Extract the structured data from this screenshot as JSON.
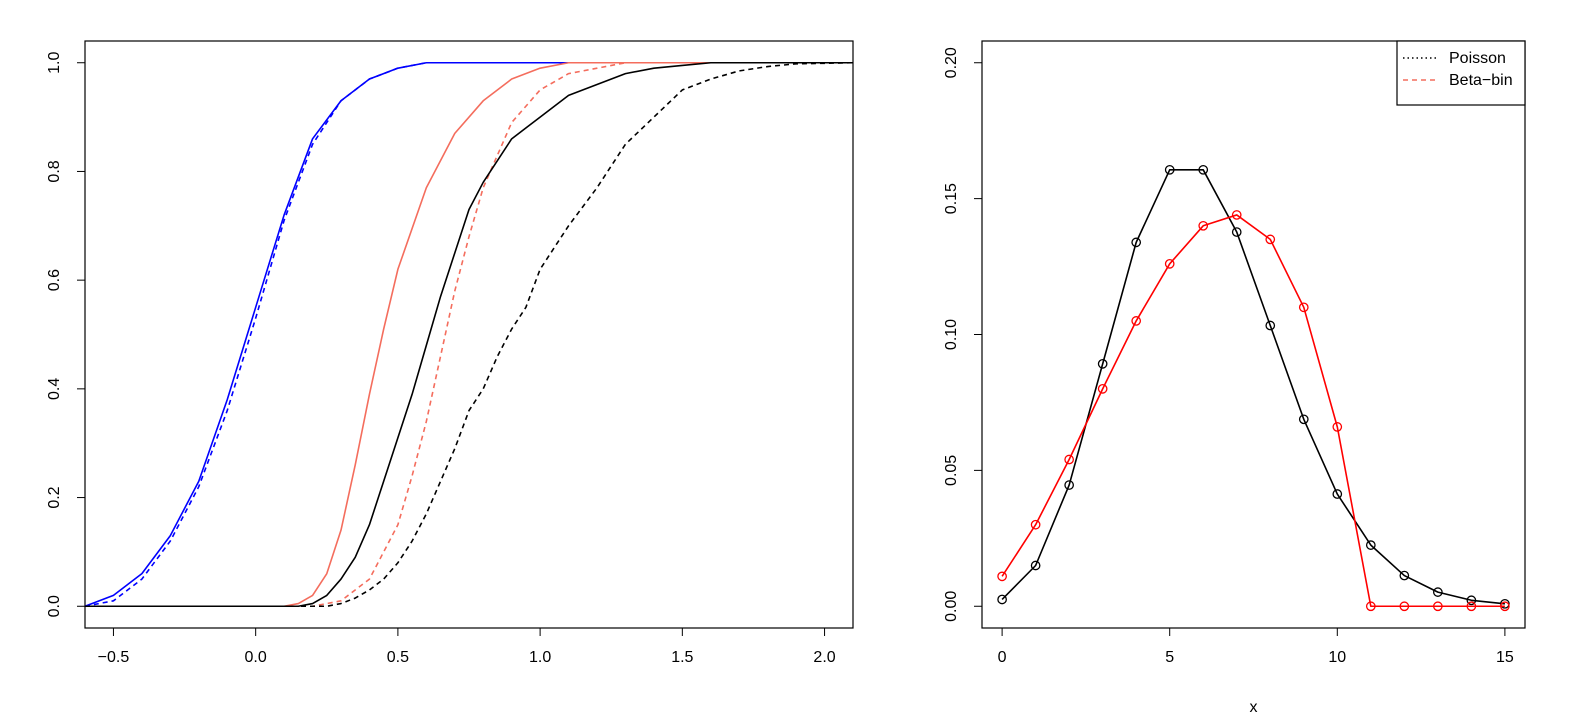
{
  "colors": {
    "blue": "#0000ff",
    "salmon": "#f46d5d",
    "black": "#000000",
    "red": "#ff0000"
  },
  "chart_data": [
    {
      "type": "line",
      "title": "",
      "xlabel": "",
      "ylabel": "",
      "xlim": [
        -0.6,
        2.1
      ],
      "ylim": [
        0.0,
        1.0
      ],
      "x_ticks": [
        -0.5,
        0.0,
        0.5,
        1.0,
        1.5,
        2.0
      ],
      "x_tick_labels": [
        "−0.5",
        "0.0",
        "0.5",
        "1.0",
        "1.5",
        "2.0"
      ],
      "y_ticks": [
        0.0,
        0.2,
        0.4,
        0.6,
        0.8,
        1.0
      ],
      "y_tick_labels": [
        "0.0",
        "0.2",
        "0.4",
        "0.6",
        "0.8",
        "1.0"
      ],
      "series": [
        {
          "color": "blue",
          "dash": "solid",
          "x": [
            -0.6,
            -0.5,
            -0.4,
            -0.3,
            -0.2,
            -0.1,
            0.0,
            0.1,
            0.2,
            0.3,
            0.4,
            0.5,
            0.6,
            0.8,
            2.1
          ],
          "y": [
            0.0,
            0.02,
            0.06,
            0.13,
            0.23,
            0.38,
            0.55,
            0.72,
            0.86,
            0.93,
            0.97,
            0.99,
            1.0,
            1.0,
            1.0
          ]
        },
        {
          "color": "blue",
          "dash": "dashed",
          "x": [
            -0.6,
            -0.5,
            -0.4,
            -0.3,
            -0.2,
            -0.1,
            0.0,
            0.1,
            0.2,
            0.3,
            0.4,
            0.5,
            0.6,
            0.8,
            2.1
          ],
          "y": [
            0.0,
            0.01,
            0.05,
            0.12,
            0.22,
            0.36,
            0.53,
            0.71,
            0.85,
            0.93,
            0.97,
            0.99,
            1.0,
            1.0,
            1.0
          ]
        },
        {
          "color": "salmon",
          "dash": "solid",
          "x": [
            -0.6,
            0.1,
            0.15,
            0.2,
            0.25,
            0.3,
            0.35,
            0.4,
            0.45,
            0.5,
            0.6,
            0.7,
            0.8,
            0.9,
            1.0,
            1.1,
            2.1
          ],
          "y": [
            0.0,
            0.0,
            0.005,
            0.02,
            0.06,
            0.14,
            0.26,
            0.39,
            0.51,
            0.62,
            0.77,
            0.87,
            0.93,
            0.97,
            0.99,
            1.0,
            1.0
          ]
        },
        {
          "color": "salmon",
          "dash": "dashed",
          "x": [
            -0.6,
            0.2,
            0.3,
            0.4,
            0.5,
            0.55,
            0.6,
            0.65,
            0.7,
            0.75,
            0.8,
            0.9,
            1.0,
            1.1,
            1.2,
            1.3,
            1.5,
            2.1
          ],
          "y": [
            0.0,
            0.0,
            0.01,
            0.05,
            0.15,
            0.24,
            0.34,
            0.46,
            0.58,
            0.68,
            0.77,
            0.89,
            0.95,
            0.98,
            0.99,
            1.0,
            1.0,
            1.0
          ]
        },
        {
          "color": "black",
          "dash": "solid",
          "x": [
            -0.6,
            0.15,
            0.2,
            0.25,
            0.3,
            0.35,
            0.4,
            0.45,
            0.5,
            0.55,
            0.6,
            0.65,
            0.7,
            0.75,
            0.8,
            0.9,
            1.0,
            1.1,
            1.2,
            1.3,
            1.4,
            1.5,
            1.6,
            2.1
          ],
          "y": [
            0.0,
            0.0,
            0.005,
            0.02,
            0.05,
            0.09,
            0.15,
            0.23,
            0.31,
            0.39,
            0.48,
            0.57,
            0.65,
            0.73,
            0.78,
            0.86,
            0.9,
            0.94,
            0.96,
            0.98,
            0.99,
            0.995,
            1.0,
            1.0
          ]
        },
        {
          "color": "black",
          "dash": "dashed",
          "x": [
            -0.6,
            0.25,
            0.3,
            0.35,
            0.4,
            0.45,
            0.5,
            0.55,
            0.6,
            0.65,
            0.7,
            0.75,
            0.8,
            0.85,
            0.9,
            0.95,
            1.0,
            1.05,
            1.1,
            1.2,
            1.3,
            1.4,
            1.5,
            1.6,
            1.7,
            1.8,
            1.9,
            2.1
          ],
          "y": [
            0.0,
            0.0,
            0.005,
            0.015,
            0.03,
            0.05,
            0.08,
            0.12,
            0.17,
            0.23,
            0.29,
            0.36,
            0.4,
            0.46,
            0.51,
            0.55,
            0.62,
            0.66,
            0.7,
            0.77,
            0.85,
            0.9,
            0.95,
            0.97,
            0.985,
            0.993,
            0.998,
            1.0
          ]
        }
      ]
    },
    {
      "type": "line",
      "title": "",
      "xlabel": "x",
      "ylabel": "",
      "xlim": [
        -0.6,
        15.6
      ],
      "ylim": [
        0.0,
        0.2
      ],
      "x_ticks": [
        0,
        5,
        10,
        15
      ],
      "x_tick_labels": [
        "0",
        "5",
        "10",
        "15"
      ],
      "y_ticks": [
        0.0,
        0.05,
        0.1,
        0.15,
        0.2
      ],
      "y_tick_labels": [
        "0.00",
        "0.05",
        "0.10",
        "0.15",
        "0.20"
      ],
      "legend": {
        "placement": "top-right",
        "entries": [
          {
            "label": "Poisson",
            "color": "black",
            "dash": "dotted"
          },
          {
            "label": "Beta−bin",
            "color": "salmon",
            "dash": "dashed"
          }
        ]
      },
      "series": [
        {
          "color": "black",
          "marker": "circle",
          "x": [
            0,
            1,
            2,
            3,
            4,
            5,
            6,
            7,
            8,
            9,
            10,
            11,
            12,
            13,
            14,
            15
          ],
          "y": [
            0.0025,
            0.015,
            0.0446,
            0.0892,
            0.1339,
            0.1606,
            0.1606,
            0.1377,
            0.1033,
            0.0688,
            0.0413,
            0.0225,
            0.0113,
            0.0052,
            0.0022,
            0.0009
          ]
        },
        {
          "color": "red",
          "marker": "circle",
          "x": [
            0,
            1,
            2,
            3,
            4,
            5,
            6,
            7,
            8,
            9,
            10,
            11,
            12,
            13,
            14,
            15
          ],
          "y": [
            0.011,
            0.03,
            0.054,
            0.08,
            0.105,
            0.126,
            0.14,
            0.144,
            0.135,
            0.11,
            0.066,
            0.0,
            0.0,
            0.0,
            0.0,
            0.0
          ]
        }
      ]
    }
  ]
}
